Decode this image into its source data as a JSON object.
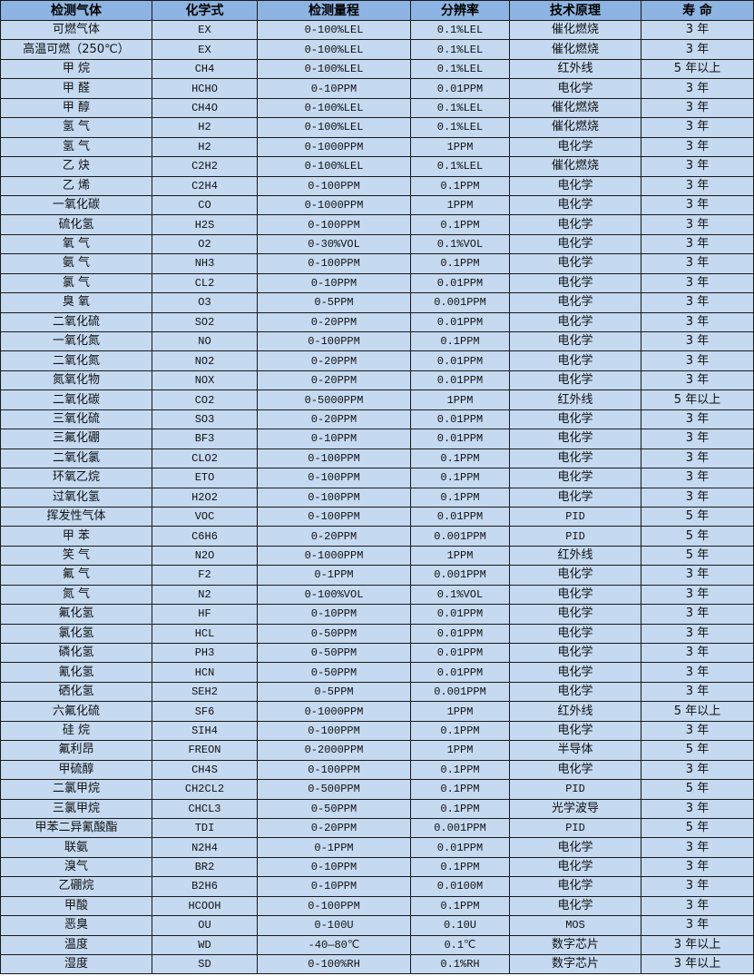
{
  "table": {
    "headers": [
      "检测气体",
      "化学式",
      "检测量程",
      "分辨率",
      "技术原理",
      "寿 命"
    ],
    "rows": [
      [
        "可燃气体",
        "EX",
        "0-100%LEL",
        "0.1%LEL",
        "催化燃烧",
        "3 年"
      ],
      [
        "高温可燃（250℃）",
        "EX",
        "0-100%LEL",
        "0.1%LEL",
        "催化燃烧",
        "3 年"
      ],
      [
        "甲 烷",
        "CH4",
        "0-100%LEL",
        "0.1%LEL",
        "红外线",
        "5 年以上"
      ],
      [
        "甲 醛",
        "HCHO",
        "0-10PPM",
        "0.01PPM",
        "电化学",
        "3 年"
      ],
      [
        "甲 醇",
        "CH4O",
        "0-100%LEL",
        "0.1%LEL",
        "催化燃烧",
        "3 年"
      ],
      [
        "氢 气",
        "H2",
        "0-100%LEL",
        "0.1%LEL",
        "催化燃烧",
        "3 年"
      ],
      [
        "氢 气",
        "H2",
        "0-1000PPM",
        "1PPM",
        "电化学",
        "3 年"
      ],
      [
        "乙 炔",
        "C2H2",
        "0-100%LEL",
        "0.1%LEL",
        "催化燃烧",
        "3 年"
      ],
      [
        "乙 烯",
        "C2H4",
        "0-100PPM",
        "0.1PPM",
        "电化学",
        "3 年"
      ],
      [
        "一氧化碳",
        "CO",
        "0-1000PPM",
        "1PPM",
        "电化学",
        "3 年"
      ],
      [
        "硫化氢",
        "H2S",
        "0-100PPM",
        "0.1PPM",
        "电化学",
        "3 年"
      ],
      [
        "氧 气",
        "O2",
        "0-30%VOL",
        "0.1%VOL",
        "电化学",
        "3 年"
      ],
      [
        "氨 气",
        "NH3",
        "0-100PPM",
        "0.1PPM",
        "电化学",
        "3 年"
      ],
      [
        "氯 气",
        "CL2",
        "0-10PPM",
        "0.01PPM",
        "电化学",
        "3 年"
      ],
      [
        "臭 氧",
        "O3",
        "0-5PPM",
        "0.001PPM",
        "电化学",
        "3 年"
      ],
      [
        "二氧化硫",
        "SO2",
        "0-20PPM",
        "0.01PPM",
        "电化学",
        "3 年"
      ],
      [
        "一氧化氮",
        "NO",
        "0-100PPM",
        "0.1PPM",
        "电化学",
        "3 年"
      ],
      [
        "二氧化氮",
        "NO2",
        "0-20PPM",
        "0.01PPM",
        "电化学",
        "3 年"
      ],
      [
        "氮氧化物",
        "NOX",
        "0-20PPM",
        "0.01PPM",
        "电化学",
        "3 年"
      ],
      [
        "二氧化碳",
        "CO2",
        "0-5000PPM",
        "1PPM",
        "红外线",
        "5 年以上"
      ],
      [
        "三氧化硫",
        "SO3",
        "0-20PPM",
        "0.01PPM",
        "电化学",
        "3 年"
      ],
      [
        "三氟化硼",
        "BF3",
        "0-10PPM",
        "0.01PPM",
        "电化学",
        "3 年"
      ],
      [
        "二氧化氯",
        "CLO2",
        "0-100PPM",
        "0.1PPM",
        "电化学",
        "3 年"
      ],
      [
        "环氧乙烷",
        "ETO",
        "0-100PPM",
        "0.1PPM",
        "电化学",
        "3 年"
      ],
      [
        "过氧化氢",
        "H2O2",
        "0-100PPM",
        "0.1PPM",
        "电化学",
        "3 年"
      ],
      [
        "挥发性气体",
        "VOC",
        "0-100PPM",
        "0.01PPM",
        "PID",
        "5 年"
      ],
      [
        "甲 苯",
        "C6H6",
        "0-20PPM",
        "0.001PPM",
        "PID",
        "5 年"
      ],
      [
        "笑 气",
        "N2O",
        "0-1000PPM",
        "1PPM",
        "红外线",
        "5 年"
      ],
      [
        "氟 气",
        "F2",
        "0-1PPM",
        "0.001PPM",
        "电化学",
        "3 年"
      ],
      [
        "氮 气",
        "N2",
        "0-100%VOL",
        "0.1%VOL",
        "电化学",
        "3 年"
      ],
      [
        "氟化氢",
        "HF",
        "0-10PPM",
        "0.01PPM",
        "电化学",
        "3 年"
      ],
      [
        "氯化氢",
        "HCL",
        "0-50PPM",
        "0.01PPM",
        "电化学",
        "3 年"
      ],
      [
        "磷化氢",
        "PH3",
        "0-50PPM",
        "0.01PPM",
        "电化学",
        "3 年"
      ],
      [
        "氰化氢",
        "HCN",
        "0-50PPM",
        "0.01PPM",
        "电化学",
        "3 年"
      ],
      [
        "硒化氢",
        "SEH2",
        "0-5PPM",
        "0.001PPM",
        "电化学",
        "3 年"
      ],
      [
        "六氟化硫",
        "SF6",
        "0-1000PPM",
        "1PPM",
        "红外线",
        "5 年以上"
      ],
      [
        "硅 烷",
        "SIH4",
        "0-100PPM",
        "0.1PPM",
        "电化学",
        "3 年"
      ],
      [
        "氟利昂",
        "FREON",
        "0-2000PPM",
        "1PPM",
        "半导体",
        "5 年"
      ],
      [
        "甲硫醇",
        "CH4S",
        "0-100PPM",
        "0.1PPM",
        "电化学",
        "3 年"
      ],
      [
        "二氯甲烷",
        "CH2CL2",
        "0-500PPM",
        "0.1PPM",
        "PID",
        "5 年"
      ],
      [
        "三氯甲烷",
        "CHCL3",
        "0-50PPM",
        "0.1PPM",
        "光学波导",
        "3 年"
      ],
      [
        "甲苯二异氰酸酯",
        "TDI",
        "0-20PPM",
        "0.001PPM",
        "PID",
        "5 年"
      ],
      [
        "联氨",
        "N2H4",
        "0-1PPM",
        "0.01PPM",
        "电化学",
        "3 年"
      ],
      [
        "溴气",
        "BR2",
        "0-10PPM",
        "0.1PPM",
        "电化学",
        "3 年"
      ],
      [
        "乙硼烷",
        "B2H6",
        "0-10PPM",
        "0.0100M",
        "电化学",
        "3 年"
      ],
      [
        "甲酸",
        "HCOOH",
        "0-100PPM",
        "0.1PPM",
        "电化学",
        "3 年"
      ],
      [
        "恶臭",
        "OU",
        "0-100U",
        "0.10U",
        "MOS",
        "3 年"
      ],
      [
        "温度",
        "WD",
        "-40—80℃",
        "0.1℃",
        "数字芯片",
        "3 年以上"
      ],
      [
        "湿度",
        "SD",
        "0-100%RH",
        "0.1%RH",
        "数字芯片",
        "3 年以上"
      ]
    ]
  }
}
